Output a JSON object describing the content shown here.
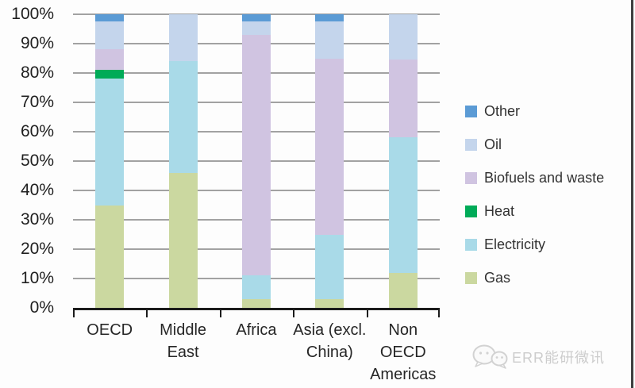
{
  "chart_data": {
    "type": "bar",
    "stacking": "percent",
    "title": "",
    "xlabel": "",
    "ylabel": "",
    "ylim": [
      0,
      100
    ],
    "grid": true,
    "legend_position": "right",
    "categories": [
      "OECD",
      "Middle East",
      "Africa",
      "Asia (excl. China)",
      "Non OECD Americas"
    ],
    "category_label_lines": [
      [
        "OECD"
      ],
      [
        "Middle",
        "East"
      ],
      [
        "Africa"
      ],
      [
        "Asia (excl.",
        "China)"
      ],
      [
        "Non",
        "OECD",
        "Americas"
      ]
    ],
    "series": [
      {
        "name": "Gas",
        "color": "#cbd8a0",
        "values": [
          35,
          46,
          3,
          3,
          12
        ]
      },
      {
        "name": "Electricity",
        "color": "#a9dae8",
        "values": [
          43,
          38,
          8,
          22,
          46
        ]
      },
      {
        "name": "Heat",
        "color": "#00ab58",
        "values": [
          3,
          0,
          0,
          0,
          0
        ]
      },
      {
        "name": "Biofuels and waste",
        "color": "#d0c4e1",
        "values": [
          7,
          0,
          82,
          60,
          26.5
        ]
      },
      {
        "name": "Oil",
        "color": "#c4d5ec",
        "values": [
          9.5,
          16,
          4.5,
          12.5,
          15.5
        ]
      },
      {
        "name": "Other",
        "color": "#5b9bd5",
        "values": [
          2.5,
          0,
          2.5,
          2.5,
          0
        ]
      }
    ],
    "legend_order_top_to_bottom": [
      "Other",
      "Oil",
      "Biofuels and waste",
      "Heat",
      "Electricity",
      "Gas"
    ],
    "y_ticks": [
      "100%",
      "90%",
      "80%",
      "70%",
      "60%",
      "50%",
      "40%",
      "30%",
      "20%",
      "10%",
      "0%"
    ]
  },
  "watermark": {
    "text": "ERR能研微讯",
    "icon": "chat-bubbles-icon",
    "color": "#cdcdcd"
  },
  "colors": {
    "gridline": "#a2a2a2",
    "axis": "#1c1c1c",
    "y_tick_label": "#1f1f1f",
    "x_tick_label": "#262626",
    "legend_text": "#333333",
    "background": "#fdfdfd"
  }
}
